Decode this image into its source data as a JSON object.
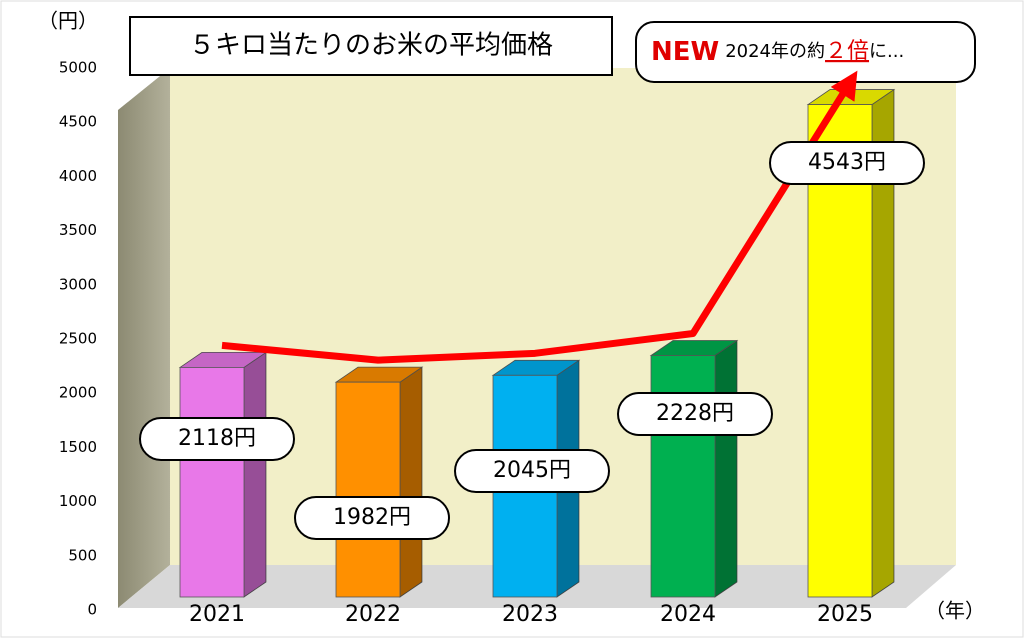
{
  "chart_data": {
    "type": "bar",
    "title": "５キロ当たりのお米の平均価格",
    "y_unit": "（円）",
    "x_unit": "（年）",
    "annotation": [
      "NEW",
      "2024年の約",
      "２倍",
      "に..."
    ],
    "categories": [
      "2021",
      "2022",
      "2023",
      "2024",
      "2025"
    ],
    "values": [
      2118,
      1982,
      2045,
      2228,
      4543
    ],
    "value_labels": [
      "2118円",
      "1982円",
      "2045円",
      "2228円",
      "4543円"
    ],
    "colors": [
      "#e878e8",
      "#ff9000",
      "#00b0f0",
      "#00b050",
      "#ffff00"
    ],
    "trend_color": "#ff0000",
    "ylim": [
      0,
      5000
    ],
    "yticks": [
      0,
      500,
      1000,
      1500,
      2000,
      2500,
      3000,
      3500,
      4000,
      4500,
      5000
    ]
  }
}
